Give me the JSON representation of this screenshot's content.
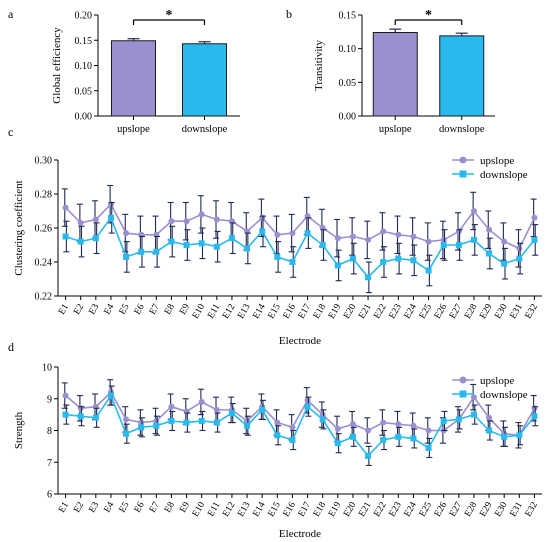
{
  "colors": {
    "upslope": "#9b8fd0",
    "downslope": "#29b9ee",
    "axis": "#000000",
    "error": "#1f2a55",
    "bar_edge": "#1a1a1a"
  },
  "chart_data": [
    {
      "panel": "a",
      "type": "bar",
      "ylabel": "Global efficiency",
      "ylim": [
        0,
        0.2
      ],
      "yticks": [
        "0.00",
        "0.05",
        "0.10",
        "0.15",
        "0.20"
      ],
      "categories": [
        "upslope",
        "downslope"
      ],
      "values": [
        0.149,
        0.143
      ],
      "errors": [
        0.004,
        0.004
      ],
      "significance": "*"
    },
    {
      "panel": "b",
      "type": "bar",
      "ylabel": "Transitivity",
      "ylim": [
        0,
        0.15
      ],
      "yticks": [
        "0.00",
        "0.05",
        "0.10",
        "0.15"
      ],
      "categories": [
        "upslope",
        "downslope"
      ],
      "values": [
        0.124,
        0.119
      ],
      "errors": [
        0.005,
        0.004
      ],
      "significance": "*"
    },
    {
      "panel": "c",
      "type": "line",
      "xlabel": "Electrode",
      "ylabel": "Clustering coefficient",
      "ylim": [
        0.22,
        0.3
      ],
      "yticks": [
        "0.22",
        "0.24",
        "0.26",
        "0.28",
        "0.30"
      ],
      "legend_position": "top-right",
      "x": [
        "E1",
        "E2",
        "E3",
        "E4",
        "E5",
        "E6",
        "E7",
        "E8",
        "E9",
        "E10",
        "E11",
        "E12",
        "E13",
        "E14",
        "E15",
        "E16",
        "E17",
        "E18",
        "E19",
        "E20",
        "E21",
        "E22",
        "E23",
        "E24",
        "E25",
        "E26",
        "E27",
        "E28",
        "E29",
        "E30",
        "E31",
        "E32"
      ],
      "series": [
        {
          "name": "upslope",
          "values": [
            0.272,
            0.263,
            0.265,
            0.274,
            0.257,
            0.256,
            0.256,
            0.264,
            0.264,
            0.268,
            0.265,
            0.264,
            0.258,
            0.266,
            0.256,
            0.257,
            0.267,
            0.26,
            0.254,
            0.255,
            0.253,
            0.258,
            0.256,
            0.255,
            0.252,
            0.253,
            0.258,
            0.27,
            0.259,
            0.252,
            0.248,
            0.266
          ],
          "errors": [
            0.011,
            0.011,
            0.011,
            0.011,
            0.011,
            0.011,
            0.011,
            0.011,
            0.011,
            0.011,
            0.011,
            0.011,
            0.011,
            0.011,
            0.011,
            0.011,
            0.011,
            0.011,
            0.011,
            0.011,
            0.011,
            0.011,
            0.011,
            0.011,
            0.011,
            0.011,
            0.011,
            0.011,
            0.011,
            0.011,
            0.011,
            0.011
          ]
        },
        {
          "name": "downslope",
          "values": [
            0.255,
            0.252,
            0.254,
            0.266,
            0.243,
            0.246,
            0.246,
            0.252,
            0.25,
            0.251,
            0.249,
            0.254,
            0.248,
            0.258,
            0.243,
            0.24,
            0.257,
            0.25,
            0.238,
            0.242,
            0.231,
            0.24,
            0.242,
            0.241,
            0.235,
            0.25,
            0.25,
            0.253,
            0.245,
            0.239,
            0.242,
            0.253
          ],
          "errors": [
            0.009,
            0.009,
            0.009,
            0.009,
            0.009,
            0.009,
            0.009,
            0.009,
            0.009,
            0.009,
            0.009,
            0.009,
            0.009,
            0.009,
            0.009,
            0.009,
            0.009,
            0.009,
            0.009,
            0.009,
            0.009,
            0.009,
            0.009,
            0.009,
            0.009,
            0.009,
            0.009,
            0.009,
            0.009,
            0.009,
            0.009,
            0.009
          ]
        }
      ]
    },
    {
      "panel": "d",
      "type": "line",
      "xlabel": "Electrode",
      "ylabel": "Strength",
      "ylim": [
        6,
        10
      ],
      "yticks": [
        "6",
        "7",
        "8",
        "9",
        "10"
      ],
      "legend_position": "top-right",
      "x": [
        "E1",
        "E2",
        "E3",
        "E4",
        "E5",
        "E6",
        "E7",
        "E8",
        "E9",
        "E10",
        "E11",
        "E12",
        "E13",
        "E14",
        "E15",
        "E16",
        "E17",
        "E18",
        "E19",
        "E20",
        "E21",
        "E22",
        "E23",
        "E24",
        "E25",
        "E26",
        "E27",
        "E28",
        "E29",
        "E30",
        "E31",
        "E32"
      ],
      "series": [
        {
          "name": "upslope",
          "values": [
            9.1,
            8.7,
            8.75,
            9.2,
            8.35,
            8.25,
            8.3,
            8.75,
            8.6,
            8.9,
            8.65,
            8.65,
            8.3,
            8.75,
            8.25,
            8.1,
            8.95,
            8.5,
            8.05,
            8.2,
            8.0,
            8.25,
            8.2,
            8.15,
            8.0,
            8.0,
            8.35,
            9.05,
            8.4,
            7.9,
            7.85,
            8.7
          ],
          "errors": [
            0.4,
            0.4,
            0.4,
            0.4,
            0.4,
            0.4,
            0.4,
            0.4,
            0.4,
            0.4,
            0.4,
            0.4,
            0.4,
            0.4,
            0.4,
            0.4,
            0.4,
            0.4,
            0.4,
            0.4,
            0.4,
            0.4,
            0.4,
            0.4,
            0.4,
            0.4,
            0.4,
            0.4,
            0.4,
            0.4,
            0.4,
            0.4
          ]
        },
        {
          "name": "downslope",
          "values": [
            8.5,
            8.45,
            8.4,
            9.1,
            7.9,
            8.1,
            8.15,
            8.3,
            8.25,
            8.3,
            8.25,
            8.55,
            8.15,
            8.65,
            7.85,
            7.7,
            8.75,
            8.35,
            7.6,
            7.8,
            7.2,
            7.7,
            7.8,
            7.75,
            7.45,
            8.3,
            8.35,
            8.5,
            8.0,
            7.8,
            7.85,
            8.45
          ],
          "errors": [
            0.3,
            0.3,
            0.3,
            0.3,
            0.3,
            0.3,
            0.3,
            0.3,
            0.3,
            0.3,
            0.3,
            0.3,
            0.3,
            0.3,
            0.3,
            0.3,
            0.3,
            0.3,
            0.3,
            0.3,
            0.3,
            0.3,
            0.3,
            0.3,
            0.3,
            0.3,
            0.3,
            0.3,
            0.3,
            0.3,
            0.3,
            0.3
          ]
        }
      ]
    }
  ]
}
